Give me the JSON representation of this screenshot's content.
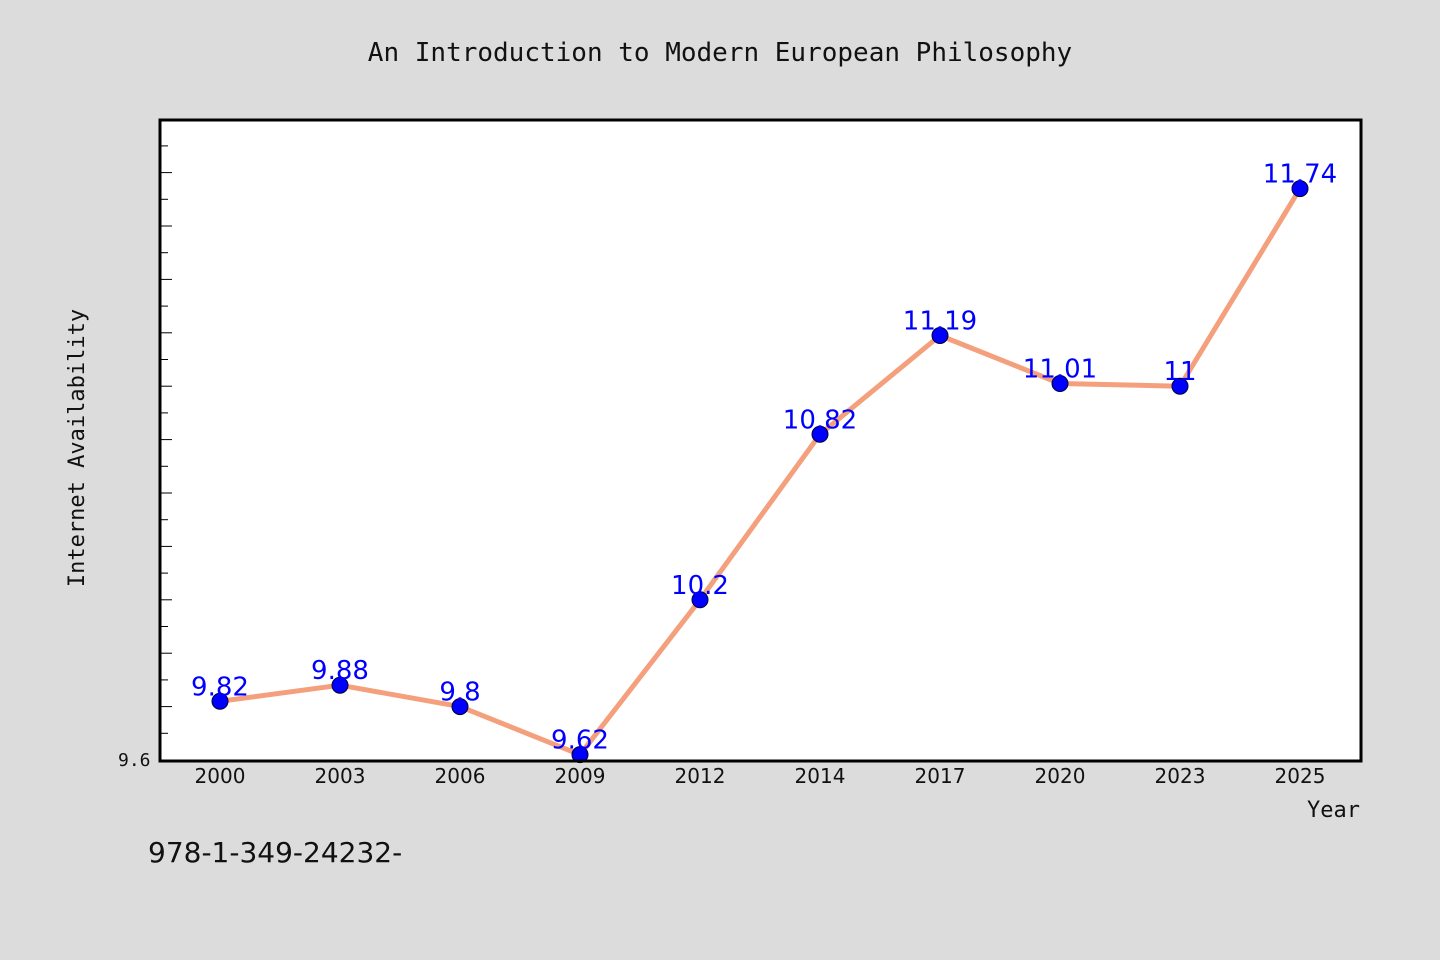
{
  "chart_data": {
    "type": "line",
    "title": "An Introduction to Modern European Philosophy",
    "xlabel": "Year",
    "ylabel": "Internet Availability",
    "categories": [
      "2000",
      "2003",
      "2006",
      "2009",
      "2012",
      "2014",
      "2017",
      "2020",
      "2023",
      "2025"
    ],
    "series": [
      {
        "values": [
          9.82,
          9.88,
          9.8,
          9.62,
          10.2,
          10.82,
          11.19,
          11.01,
          11.0,
          11.74
        ],
        "labels": [
          "9.82",
          "9.88",
          "9.8",
          "9.62",
          "10.2",
          "10.82",
          "11.19",
          "11.01",
          "11",
          "11.74"
        ]
      }
    ],
    "ylim": [
      9.6,
      12.0
    ],
    "y_tick_labels": [
      "9.6"
    ],
    "grid": false,
    "line_color": "#f4a07c",
    "marker_color": "#0000ff",
    "label_color": "#0000ff",
    "background_color": "#dcdcdc",
    "plot_background_color": "#ffffff"
  },
  "footer": {
    "isbn": "978-1-349-24232-"
  }
}
